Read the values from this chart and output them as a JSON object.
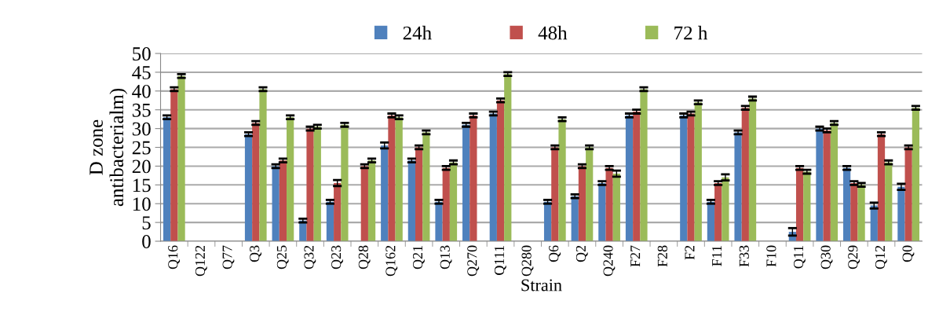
{
  "chart_data": {
    "type": "bar",
    "xlabel": "Strain",
    "ylabel": "D zone\nantibacterialm)",
    "categories": [
      "Q16",
      "Q122",
      "Q77",
      "Q3",
      "Q25",
      "Q32",
      "Q23",
      "Q28",
      "Q162",
      "Q21",
      "Q13",
      "Q270",
      "Q111",
      "Q280",
      "Q6",
      "Q2",
      "Q240",
      "F27",
      "F28",
      "F2",
      "F11",
      "F33",
      "F10",
      "Q11",
      "Q30",
      "Q29",
      "Q12",
      "Q0"
    ],
    "series": [
      {
        "name": "24h",
        "color": "#4f81bd",
        "values": [
          33,
          null,
          null,
          28.5,
          20,
          5.5,
          10.5,
          null,
          25.5,
          21.5,
          10.5,
          31,
          34,
          null,
          10.5,
          12,
          15.5,
          33.5,
          null,
          33.5,
          10.5,
          29,
          null,
          2.5,
          30,
          19.5,
          9.5,
          14.5
        ],
        "errors": [
          0.5,
          null,
          null,
          0.5,
          0.5,
          0.5,
          0.5,
          null,
          0.8,
          0.5,
          0.5,
          0.5,
          0.5,
          null,
          0.5,
          0.5,
          0.5,
          0.5,
          null,
          0.5,
          0.5,
          0.5,
          null,
          1,
          0.5,
          0.5,
          0.8,
          0.8
        ]
      },
      {
        "name": "48h",
        "color": "#c0504d",
        "values": [
          40.5,
          null,
          null,
          31.5,
          21.5,
          30,
          15.5,
          20,
          33.5,
          25,
          19.5,
          33.5,
          37.5,
          null,
          25,
          20,
          19.5,
          34.5,
          null,
          34,
          15.5,
          35.5,
          null,
          19.5,
          29.5,
          15.5,
          28.5,
          25
        ],
        "errors": [
          0.5,
          null,
          null,
          0.5,
          0.5,
          0.5,
          0.8,
          0.5,
          0.5,
          0.5,
          0.5,
          0.5,
          0.5,
          null,
          0.5,
          0.5,
          0.5,
          0.5,
          null,
          0.5,
          0.5,
          0.5,
          null,
          0.5,
          0.5,
          0.5,
          0.5,
          0.5
        ]
      },
      {
        "name": "72 h",
        "color": "#9bbb59",
        "values": [
          44,
          null,
          null,
          40.5,
          33,
          30.5,
          31,
          21.5,
          33,
          29,
          21,
          null,
          44.5,
          null,
          32.5,
          25,
          18,
          40.5,
          null,
          37,
          17,
          38,
          null,
          18.5,
          31.5,
          15,
          21,
          35.5
        ],
        "errors": [
          0.5,
          null,
          null,
          0.5,
          0.5,
          0.5,
          0.5,
          0.5,
          0.5,
          0.5,
          0.5,
          null,
          0.5,
          null,
          0.5,
          0.5,
          0.8,
          0.5,
          null,
          0.5,
          0.8,
          0.5,
          null,
          0.5,
          0.5,
          0.5,
          0.5,
          0.5
        ]
      }
    ],
    "ylim": [
      0,
      50
    ],
    "yticks": [
      0,
      5,
      10,
      15,
      20,
      25,
      30,
      35,
      40,
      45,
      50
    ],
    "grid": "y",
    "legend": "top"
  }
}
